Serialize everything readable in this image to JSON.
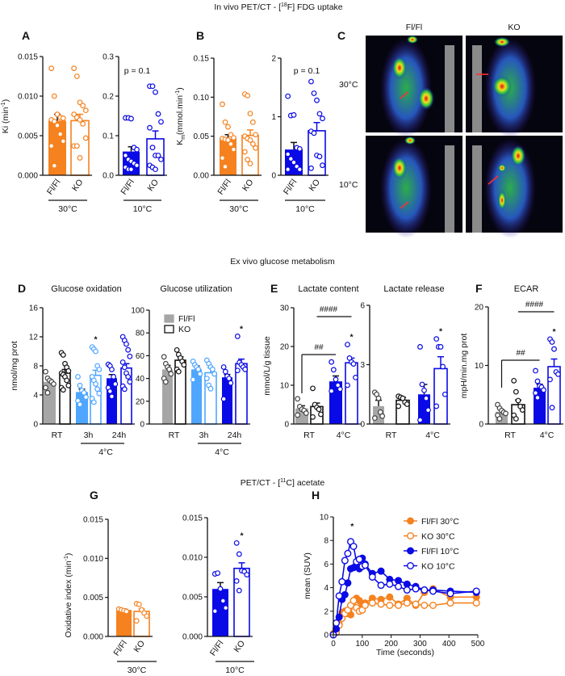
{
  "colors": {
    "orange": "#f5821f",
    "blue": "#0a0ae6",
    "lightblue": "#4ea6ff",
    "gray": "#a6a6a6",
    "black": "#111111"
  },
  "sections": {
    "top": {
      "prefix": "In vivo PET/CT - [",
      "sup": "18",
      "suffix": "F] FDG uptake"
    },
    "middle": {
      "text": "Ex vivo glucose metabolism"
    },
    "bottom": {
      "prefix": "PET/CT - [",
      "sup": "11",
      "suffix": "C] acetate"
    }
  },
  "panel_letters": {
    "A": "A",
    "B": "B",
    "C": "C",
    "D": "D",
    "E": "E",
    "F": "F",
    "G": "G",
    "H": "H"
  },
  "panel_C": {
    "columns": [
      "Fl/Fl",
      "KO"
    ],
    "rows": [
      "30°C",
      "10°C"
    ]
  },
  "chart_data": [
    {
      "id": "A1",
      "type": "bar",
      "ylabel": {
        "main": "Ki (min",
        "sup": "-1",
        "end": ")"
      },
      "ymax": 0.015,
      "ticks": [
        "0.000",
        "0.005",
        "0.010",
        "0.015"
      ],
      "xlabels": [
        "Fl/Fl",
        "KO"
      ],
      "group": "30°C",
      "bars": [
        {
          "name": "Fl/Fl",
          "mean": 0.0069,
          "sem": 0.0008,
          "color": "orange",
          "filled": true,
          "points": [
            0.0135,
            0.01,
            0.0077,
            0.0073,
            0.0072,
            0.007,
            0.0068,
            0.0063,
            0.0052,
            0.0043,
            0.0037,
            0.0012
          ]
        },
        {
          "name": "KO",
          "mean": 0.0069,
          "sem": 0.0008,
          "color": "orange",
          "filled": false,
          "points": [
            0.0135,
            0.0125,
            0.0092,
            0.0088,
            0.0082,
            0.0077,
            0.0073,
            0.007,
            0.0065,
            0.0047,
            0.0037,
            0.0037,
            0.0022
          ]
        }
      ]
    },
    {
      "id": "A2",
      "type": "bar",
      "ymax": 0.3,
      "ticks": [
        "0.0",
        "0.1",
        "0.2",
        "0.3"
      ],
      "xlabels": [
        "Fl/Fl",
        "KO"
      ],
      "group": "10°C",
      "p_text": "p = 0.1",
      "bars": [
        {
          "name": "Fl/Fl",
          "mean": 0.06,
          "sem": 0.012,
          "color": "blue",
          "filled": true,
          "points": [
            0.145,
            0.145,
            0.143,
            0.07,
            0.065,
            0.05,
            0.04,
            0.035,
            0.03,
            0.025,
            0.02,
            0.015,
            0.015
          ]
        },
        {
          "name": "KO",
          "mean": 0.092,
          "sem": 0.02,
          "color": "blue",
          "filled": false,
          "points": [
            0.225,
            0.225,
            0.21,
            0.155,
            0.135,
            0.12,
            0.07,
            0.05,
            0.05,
            0.04,
            0.025,
            0.02,
            0.015
          ]
        }
      ]
    },
    {
      "id": "B1",
      "type": "bar",
      "ylabel": {
        "main": "K",
        "sub": "m",
        "end": "(mmol.min",
        "sup": "-1",
        "close": ")"
      },
      "ymax": 0.15,
      "ticks": [
        "0.00",
        "0.05",
        "0.10",
        "0.15"
      ],
      "xlabels": [
        "Fl/Fl",
        "KO"
      ],
      "group": "30°C",
      "bars": [
        {
          "name": "Fl/Fl",
          "mean": 0.047,
          "sem": 0.005,
          "color": "orange",
          "filled": true,
          "points": [
            0.091,
            0.068,
            0.062,
            0.052,
            0.048,
            0.047,
            0.046,
            0.045,
            0.04,
            0.033,
            0.022,
            0.011
          ]
        },
        {
          "name": "KO",
          "mean": 0.051,
          "sem": 0.007,
          "color": "orange",
          "filled": false,
          "points": [
            0.104,
            0.102,
            0.079,
            0.068,
            0.052,
            0.05,
            0.047,
            0.045,
            0.04,
            0.035,
            0.03,
            0.02,
            0.015
          ]
        }
      ]
    },
    {
      "id": "B2",
      "type": "bar",
      "ymax": 2,
      "ticks": [
        "0",
        "1",
        "2"
      ],
      "xlabels": [
        "Fl/Fl",
        "KO"
      ],
      "group": "10°C",
      "p_text": "p = 0.1",
      "bars": [
        {
          "name": "Fl/Fl",
          "mean": 0.44,
          "sem": 0.12,
          "color": "blue",
          "filled": true,
          "points": [
            1.35,
            1.02,
            1.03,
            0.47,
            0.45,
            0.36,
            0.28,
            0.22,
            0.15,
            0.1,
            0.1
          ]
        },
        {
          "name": "KO",
          "mean": 0.76,
          "sem": 0.14,
          "color": "blue",
          "filled": false,
          "points": [
            1.6,
            1.4,
            1.28,
            1.05,
            0.97,
            0.75,
            0.72,
            0.34,
            0.32,
            0.17,
            0.12
          ]
        }
      ]
    },
    {
      "id": "D1",
      "type": "bar",
      "title": "Glucose oxidation",
      "ylabel": {
        "main": "nmol/mg prot"
      },
      "ymax": 16,
      "ticks": [
        "0",
        "4",
        "8",
        "12",
        "16"
      ],
      "xlabels": [
        "RT",
        "3h",
        "24h"
      ],
      "group": "4°C",
      "stars": [
        3
      ],
      "bars": [
        {
          "name": "Fl/Fl RT",
          "mean": 5.8,
          "sem": 0.3,
          "color": "gray",
          "filled": true,
          "points": [
            7.2,
            6.3,
            6.0,
            5.8,
            5.5,
            5.0,
            4.3
          ]
        },
        {
          "name": "KO RT",
          "mean": 7.0,
          "sem": 0.5,
          "color": "black",
          "filled": false,
          "points": [
            9.8,
            9.5,
            8.3,
            7.8,
            7.3,
            7.0,
            6.8,
            6.5,
            6.0,
            5.3,
            5.0,
            4.7
          ]
        },
        {
          "name": "Fl/Fl 3h",
          "mean": 4.4,
          "sem": 0.4,
          "color": "lightblue",
          "filled": true,
          "points": [
            6.5,
            5.3,
            4.6,
            4.3,
            3.7,
            3.2,
            2.7
          ]
        },
        {
          "name": "KO 3h",
          "mean": 6.7,
          "sem": 0.7,
          "color": "lightblue",
          "filled": false,
          "points": [
            10.6,
            10.3,
            10.0,
            8.0,
            7.5,
            6.5,
            6.0,
            5.5,
            4.8,
            4.2,
            3.5,
            3.0
          ]
        },
        {
          "name": "Fl/Fl 24h",
          "mean": 6.3,
          "sem": 0.5,
          "color": "blue",
          "filled": true,
          "points": [
            8.2,
            8.0,
            7.5,
            6.5,
            5.5,
            5.0,
            4.5,
            3.8
          ]
        },
        {
          "name": "KO 24h",
          "mean": 7.7,
          "sem": 0.6,
          "color": "blue",
          "filled": false,
          "points": [
            12.0,
            11.5,
            11.0,
            10.2,
            9.3,
            8.5,
            7.8,
            7.0,
            6.5,
            5.8,
            5.2,
            4.8
          ]
        }
      ]
    },
    {
      "id": "D2",
      "type": "bar",
      "title": "Glucose utilization",
      "ymax": 100,
      "ticks": [
        "0",
        "20",
        "40",
        "60",
        "80",
        "100"
      ],
      "xlabels": [
        "RT",
        "3h",
        "24h"
      ],
      "group": "4°C",
      "stars": [
        5
      ],
      "legend": [
        {
          "label": "Fl/Fl",
          "color": "gray",
          "filled": true
        },
        {
          "label": "KO",
          "color": "black",
          "filled": false
        }
      ],
      "bars": [
        {
          "name": "Fl/Fl RT",
          "mean": 48,
          "sem": 3.5,
          "color": "gray",
          "filled": true,
          "points": [
            59,
            53,
            50,
            48,
            44,
            40,
            37
          ]
        },
        {
          "name": "KO RT",
          "mean": 56,
          "sem": 3,
          "color": "black",
          "filled": false,
          "points": [
            65,
            61,
            58,
            55,
            52,
            48,
            46
          ]
        },
        {
          "name": "Fl/Fl 3h",
          "mean": 48,
          "sem": 3,
          "color": "lightblue",
          "filled": true,
          "points": [
            55,
            52,
            50,
            48,
            44,
            39
          ]
        },
        {
          "name": "KO 3h",
          "mean": 45,
          "sem": 4.5,
          "color": "lightblue",
          "filled": false,
          "points": [
            56,
            53,
            50,
            48,
            44,
            40,
            34,
            31
          ]
        },
        {
          "name": "Fl/Fl 24h",
          "mean": 41,
          "sem": 2.5,
          "color": "blue",
          "filled": true,
          "points": [
            50,
            46,
            42,
            40,
            36,
            22
          ]
        },
        {
          "name": "KO 24h",
          "mean": 53,
          "sem": 4,
          "color": "blue",
          "filled": false,
          "points": [
            77,
            54,
            52,
            50,
            48,
            47
          ]
        }
      ]
    },
    {
      "id": "E1",
      "type": "bar",
      "title": "Lactate content",
      "ylabel": {
        "main": "mmol/L/g tissue"
      },
      "ymax": 30,
      "ticks": [
        "0",
        "10",
        "20",
        "30"
      ],
      "xlabels": [
        "RT",
        "4°C"
      ],
      "stars": [
        3
      ],
      "brackets": [
        {
          "label": "##",
          "from": 0,
          "to": 2
        },
        {
          "label": "####",
          "from": 1,
          "to": 3
        }
      ],
      "bars": [
        {
          "name": "Fl/Fl RT",
          "mean": 4.0,
          "sem": 0.7,
          "color": "gray",
          "filled": true,
          "points": [
            6.5,
            4.5,
            3.8,
            3.5,
            2.8,
            2.3
          ]
        },
        {
          "name": "KO RT",
          "mean": 4.5,
          "sem": 0.9,
          "color": "black",
          "filled": false,
          "points": [
            9.2,
            5.0,
            4.3,
            3.8,
            2.5,
            1.8
          ]
        },
        {
          "name": "Fl/Fl 4°C",
          "mean": 11.0,
          "sem": 1.4,
          "color": "blue",
          "filled": true,
          "points": [
            16.0,
            14.0,
            11.5,
            10.0,
            9.0,
            8.5
          ]
        },
        {
          "name": "KO 4°C",
          "mean": 15.8,
          "sem": 1.2,
          "color": "blue",
          "filled": false,
          "points": [
            20.5,
            17.0,
            16.0,
            15.5,
            12.0,
            10.0
          ]
        }
      ]
    },
    {
      "id": "E2",
      "type": "bar",
      "title": "Lactate release",
      "ymax": 6,
      "ticks": [
        "0",
        "3",
        "6"
      ],
      "xlabels": [
        "RT",
        "4°C"
      ],
      "stars": [
        3
      ],
      "bars": [
        {
          "name": "Fl/Fl RT",
          "mean": 0.9,
          "sem": 0.3,
          "color": "gray",
          "filled": true,
          "points": [
            1.6,
            1.5,
            1.3,
            0.6,
            0.4,
            0.3
          ]
        },
        {
          "name": "KO RT",
          "mean": 1.2,
          "sem": 0.15,
          "color": "black",
          "filled": false,
          "points": [
            1.4,
            1.35,
            1.3,
            1.1,
            1.0,
            0.9
          ]
        },
        {
          "name": "Fl/Fl 4°C",
          "mean": 1.5,
          "sem": 0.5,
          "color": "blue",
          "filled": true,
          "points": [
            3.9,
            2.0,
            1.7,
            1.3,
            0.7,
            0.2
          ]
        },
        {
          "name": "KO 4°C",
          "mean": 2.8,
          "sem": 0.6,
          "color": "blue",
          "filled": false,
          "points": [
            4.3,
            3.9,
            3.9,
            2.9,
            1.5,
            0.9
          ]
        }
      ]
    },
    {
      "id": "F",
      "type": "bar",
      "title": "ECAR",
      "ylabel": {
        "main": "mpH/min.mg prot"
      },
      "ymax": 20,
      "ticks": [
        "0",
        "10",
        "20"
      ],
      "xlabels": [
        "RT",
        "4°C"
      ],
      "stars": [
        3
      ],
      "brackets": [
        {
          "label": "##",
          "from": 0,
          "to": 2
        },
        {
          "label": "####",
          "from": 1,
          "to": 3
        }
      ],
      "bars": [
        {
          "name": "Fl/Fl RT",
          "mean": 2.1,
          "sem": 0.3,
          "color": "gray",
          "filled": true,
          "points": [
            3.3,
            2.7,
            2.3,
            2.0,
            1.8,
            1.5,
            0.9
          ]
        },
        {
          "name": "KO RT",
          "mean": 3.3,
          "sem": 0.8,
          "color": "black",
          "filled": false,
          "points": [
            7.4,
            5.5,
            4.0,
            3.0,
            2.4,
            1.5,
            0.9
          ]
        },
        {
          "name": "Fl/Fl 4°C",
          "mean": 6.2,
          "sem": 0.6,
          "color": "blue",
          "filled": true,
          "points": [
            9.1,
            7.3,
            6.5,
            6.3,
            5.8,
            5.3,
            4.5
          ]
        },
        {
          "name": "KO 4°C",
          "mean": 9.8,
          "sem": 1.3,
          "color": "blue",
          "filled": false,
          "points": [
            14.5,
            14.0,
            12.8,
            8.9,
            8.5,
            7.6,
            2.8
          ]
        }
      ]
    },
    {
      "id": "G1",
      "type": "bar",
      "ylabel": {
        "main": "Oxidative index (min",
        "sup": "-1",
        "end": ")"
      },
      "ymax": 0.015,
      "ticks": [
        "0.000",
        "0.005",
        "0.010",
        "0.015"
      ],
      "xlabels": [
        "Fl/Fl",
        "KO"
      ],
      "group": "30°C",
      "bars": [
        {
          "name": "Fl/Fl",
          "mean": 0.0034,
          "sem": 0.0001,
          "color": "orange",
          "filled": true,
          "points": [
            0.0035,
            0.0034,
            0.0033,
            0.0032
          ]
        },
        {
          "name": "KO",
          "mean": 0.0032,
          "sem": 0.0003,
          "color": "orange",
          "filled": false,
          "points": [
            0.0042,
            0.0041,
            0.0034,
            0.003,
            0.0026,
            0.002
          ]
        }
      ]
    },
    {
      "id": "G2",
      "type": "bar",
      "ymax": 0.015,
      "ticks": [
        "0.000",
        "0.005",
        "0.010",
        "0.015"
      ],
      "xlabels": [
        "Fl/Fl",
        "KO"
      ],
      "group": "10°C",
      "stars": [
        1
      ],
      "bars": [
        {
          "name": "Fl/Fl",
          "mean": 0.006,
          "sem": 0.0008,
          "color": "blue",
          "filled": true,
          "points": [
            0.0079,
            0.008,
            0.006,
            0.0045,
            0.0036,
            0.0032
          ]
        },
        {
          "name": "KO",
          "mean": 0.0086,
          "sem": 0.0007,
          "color": "blue",
          "filled": false,
          "points": [
            0.0118,
            0.0104,
            0.0083,
            0.0082,
            0.0078,
            0.007,
            0.0058
          ]
        }
      ]
    },
    {
      "id": "H",
      "type": "line",
      "xlabel": "Time (seconds)",
      "ylabel": "mean (SUV)",
      "xlim": [
        0,
        500
      ],
      "ylim": [
        0,
        10
      ],
      "xticks": [
        "0",
        "100",
        "200",
        "300",
        "400",
        "500"
      ],
      "yticks": [
        "0",
        "2",
        "4",
        "6",
        "8",
        "10"
      ],
      "legend": "top-right",
      "star_x": 65,
      "x": [
        0,
        10,
        20,
        30,
        40,
        50,
        60,
        70,
        80,
        90,
        100,
        110,
        135,
        165,
        195,
        225,
        255,
        285,
        315,
        345,
        405,
        495
      ],
      "series": [
        {
          "name": "Fl/Fl 30°C",
          "color": "orange",
          "filled": true,
          "values": [
            0.1,
            0.3,
            0.9,
            1.9,
            2.0,
            1.8,
            1.7,
            2.9,
            3.1,
            2.9,
            2.5,
            2.7,
            3.1,
            3.0,
            3.2,
            2.6,
            3.1,
            2.5,
            3.6,
            3.9,
            3.2,
            3.2
          ]
        },
        {
          "name": "KO 30°C",
          "color": "orange",
          "filled": false,
          "values": [
            0.0,
            0.2,
            0.8,
            1.4,
            1.8,
            2.1,
            2.5,
            2.9,
            2.3,
            2.0,
            2.1,
            2.5,
            2.7,
            2.6,
            2.5,
            2.5,
            2.7,
            2.6,
            2.5,
            2.5,
            2.7,
            2.7
          ]
        },
        {
          "name": "Fl/Fl 10°C",
          "color": "blue",
          "filled": true,
          "values": [
            0.0,
            0.5,
            1.5,
            3.0,
            3.4,
            4.4,
            5.6,
            5.7,
            5.9,
            5.6,
            6.5,
            6.0,
            5.2,
            5.4,
            4.7,
            4.6,
            4.3,
            4.1,
            3.8,
            3.8,
            3.7,
            3.6
          ]
        },
        {
          "name": "KO 10°C",
          "color": "blue",
          "filled": false,
          "values": [
            0.0,
            1.0,
            3.3,
            4.5,
            6.3,
            6.9,
            7.9,
            7.5,
            6.2,
            6.4,
            5.8,
            5.9,
            4.9,
            4.2,
            4.3,
            4.1,
            3.8,
            3.9,
            3.8,
            3.7,
            3.5,
            3.7
          ]
        }
      ]
    }
  ],
  "annotation_star": "*"
}
